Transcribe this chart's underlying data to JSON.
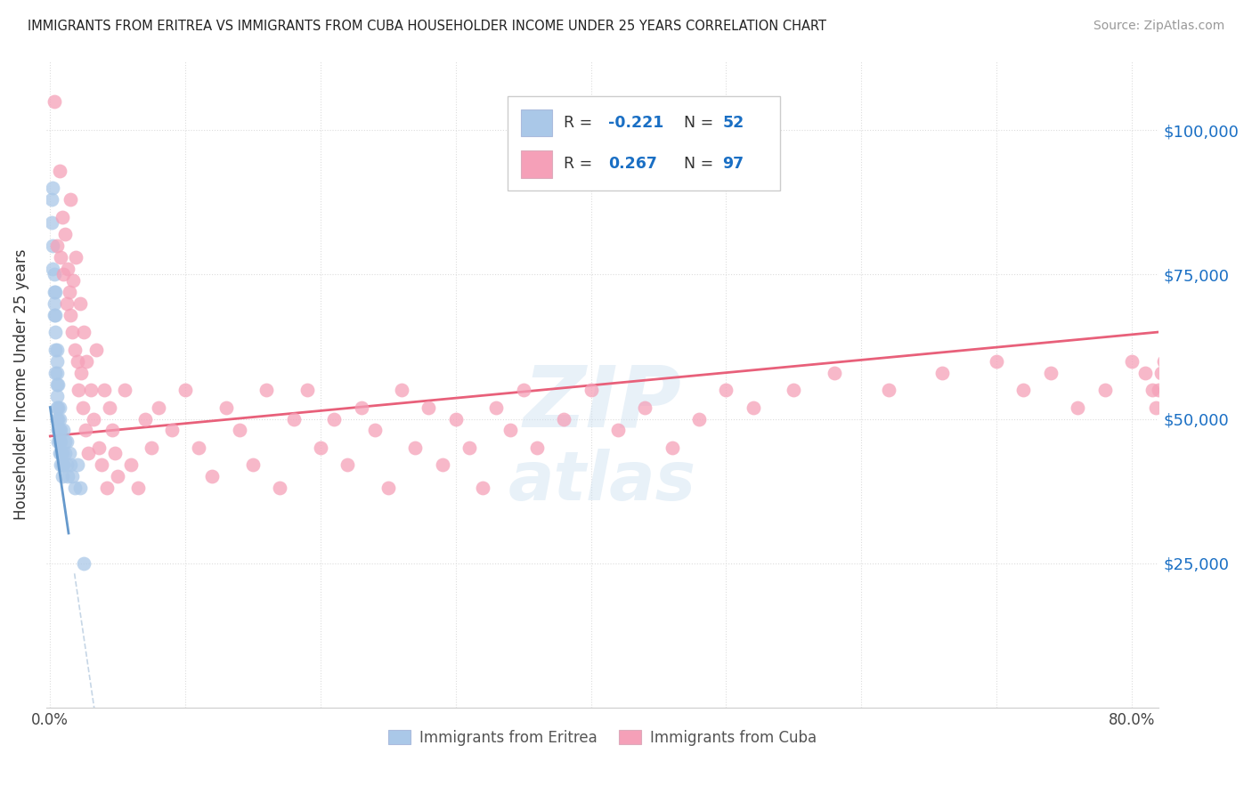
{
  "title": "IMMIGRANTS FROM ERITREA VS IMMIGRANTS FROM CUBA HOUSEHOLDER INCOME UNDER 25 YEARS CORRELATION CHART",
  "source": "Source: ZipAtlas.com",
  "ylabel": "Householder Income Under 25 years",
  "ytick_labels": [
    "$25,000",
    "$50,000",
    "$75,000",
    "$100,000"
  ],
  "ytick_values": [
    25000,
    50000,
    75000,
    100000
  ],
  "ylim": [
    0,
    112000
  ],
  "xlim": [
    -0.003,
    0.82
  ],
  "legend_eritrea": "Immigrants from Eritrea",
  "legend_cuba": "Immigrants from Cuba",
  "r_eritrea": "-0.221",
  "n_eritrea": "52",
  "r_cuba": "0.267",
  "n_cuba": "97",
  "color_eritrea": "#aac8e8",
  "color_cuba": "#f5a0b8",
  "line_eritrea": "#6699cc",
  "line_eritrea_ext": "#c0d4ec",
  "line_cuba": "#e8607a",
  "background": "#ffffff",
  "eritrea_points_x": [
    0.001,
    0.001,
    0.002,
    0.002,
    0.002,
    0.003,
    0.003,
    0.003,
    0.003,
    0.004,
    0.004,
    0.004,
    0.004,
    0.004,
    0.005,
    0.005,
    0.005,
    0.005,
    0.005,
    0.005,
    0.005,
    0.006,
    0.006,
    0.006,
    0.006,
    0.006,
    0.007,
    0.007,
    0.007,
    0.007,
    0.007,
    0.008,
    0.008,
    0.008,
    0.008,
    0.009,
    0.009,
    0.009,
    0.01,
    0.01,
    0.011,
    0.011,
    0.012,
    0.012,
    0.013,
    0.014,
    0.015,
    0.016,
    0.018,
    0.02,
    0.022,
    0.025
  ],
  "eritrea_points_y": [
    88000,
    84000,
    90000,
    80000,
    76000,
    72000,
    68000,
    75000,
    70000,
    65000,
    68000,
    62000,
    72000,
    58000,
    60000,
    56000,
    58000,
    54000,
    50000,
    52000,
    62000,
    56000,
    52000,
    48000,
    50000,
    46000,
    50000,
    48000,
    52000,
    44000,
    46000,
    48000,
    46000,
    42000,
    44000,
    44000,
    42000,
    40000,
    48000,
    42000,
    46000,
    44000,
    42000,
    46000,
    40000,
    44000,
    42000,
    40000,
    38000,
    42000,
    38000,
    25000
  ],
  "cuba_points_x": [
    0.003,
    0.005,
    0.007,
    0.008,
    0.009,
    0.01,
    0.011,
    0.012,
    0.013,
    0.014,
    0.015,
    0.015,
    0.016,
    0.017,
    0.018,
    0.019,
    0.02,
    0.021,
    0.022,
    0.023,
    0.024,
    0.025,
    0.026,
    0.027,
    0.028,
    0.03,
    0.032,
    0.034,
    0.036,
    0.038,
    0.04,
    0.042,
    0.044,
    0.046,
    0.048,
    0.05,
    0.055,
    0.06,
    0.065,
    0.07,
    0.075,
    0.08,
    0.09,
    0.1,
    0.11,
    0.12,
    0.13,
    0.14,
    0.15,
    0.16,
    0.17,
    0.18,
    0.19,
    0.2,
    0.21,
    0.22,
    0.23,
    0.24,
    0.25,
    0.26,
    0.27,
    0.28,
    0.29,
    0.3,
    0.31,
    0.32,
    0.33,
    0.34,
    0.35,
    0.36,
    0.38,
    0.4,
    0.42,
    0.44,
    0.46,
    0.48,
    0.5,
    0.52,
    0.55,
    0.58,
    0.62,
    0.66,
    0.7,
    0.72,
    0.74,
    0.76,
    0.78,
    0.8,
    0.81,
    0.815,
    0.818,
    0.82,
    0.822,
    0.824,
    0.826,
    0.828,
    0.83
  ],
  "cuba_points_y": [
    105000,
    80000,
    93000,
    78000,
    85000,
    75000,
    82000,
    70000,
    76000,
    72000,
    68000,
    88000,
    65000,
    74000,
    62000,
    78000,
    60000,
    55000,
    70000,
    58000,
    52000,
    65000,
    48000,
    60000,
    44000,
    55000,
    50000,
    62000,
    45000,
    42000,
    55000,
    38000,
    52000,
    48000,
    44000,
    40000,
    55000,
    42000,
    38000,
    50000,
    45000,
    52000,
    48000,
    55000,
    45000,
    40000,
    52000,
    48000,
    42000,
    55000,
    38000,
    50000,
    55000,
    45000,
    50000,
    42000,
    52000,
    48000,
    38000,
    55000,
    45000,
    52000,
    42000,
    50000,
    45000,
    38000,
    52000,
    48000,
    55000,
    45000,
    50000,
    55000,
    48000,
    52000,
    45000,
    50000,
    55000,
    52000,
    55000,
    58000,
    55000,
    58000,
    60000,
    55000,
    58000,
    52000,
    55000,
    60000,
    58000,
    55000,
    52000,
    55000,
    58000,
    60000,
    62000,
    58000,
    65000
  ]
}
